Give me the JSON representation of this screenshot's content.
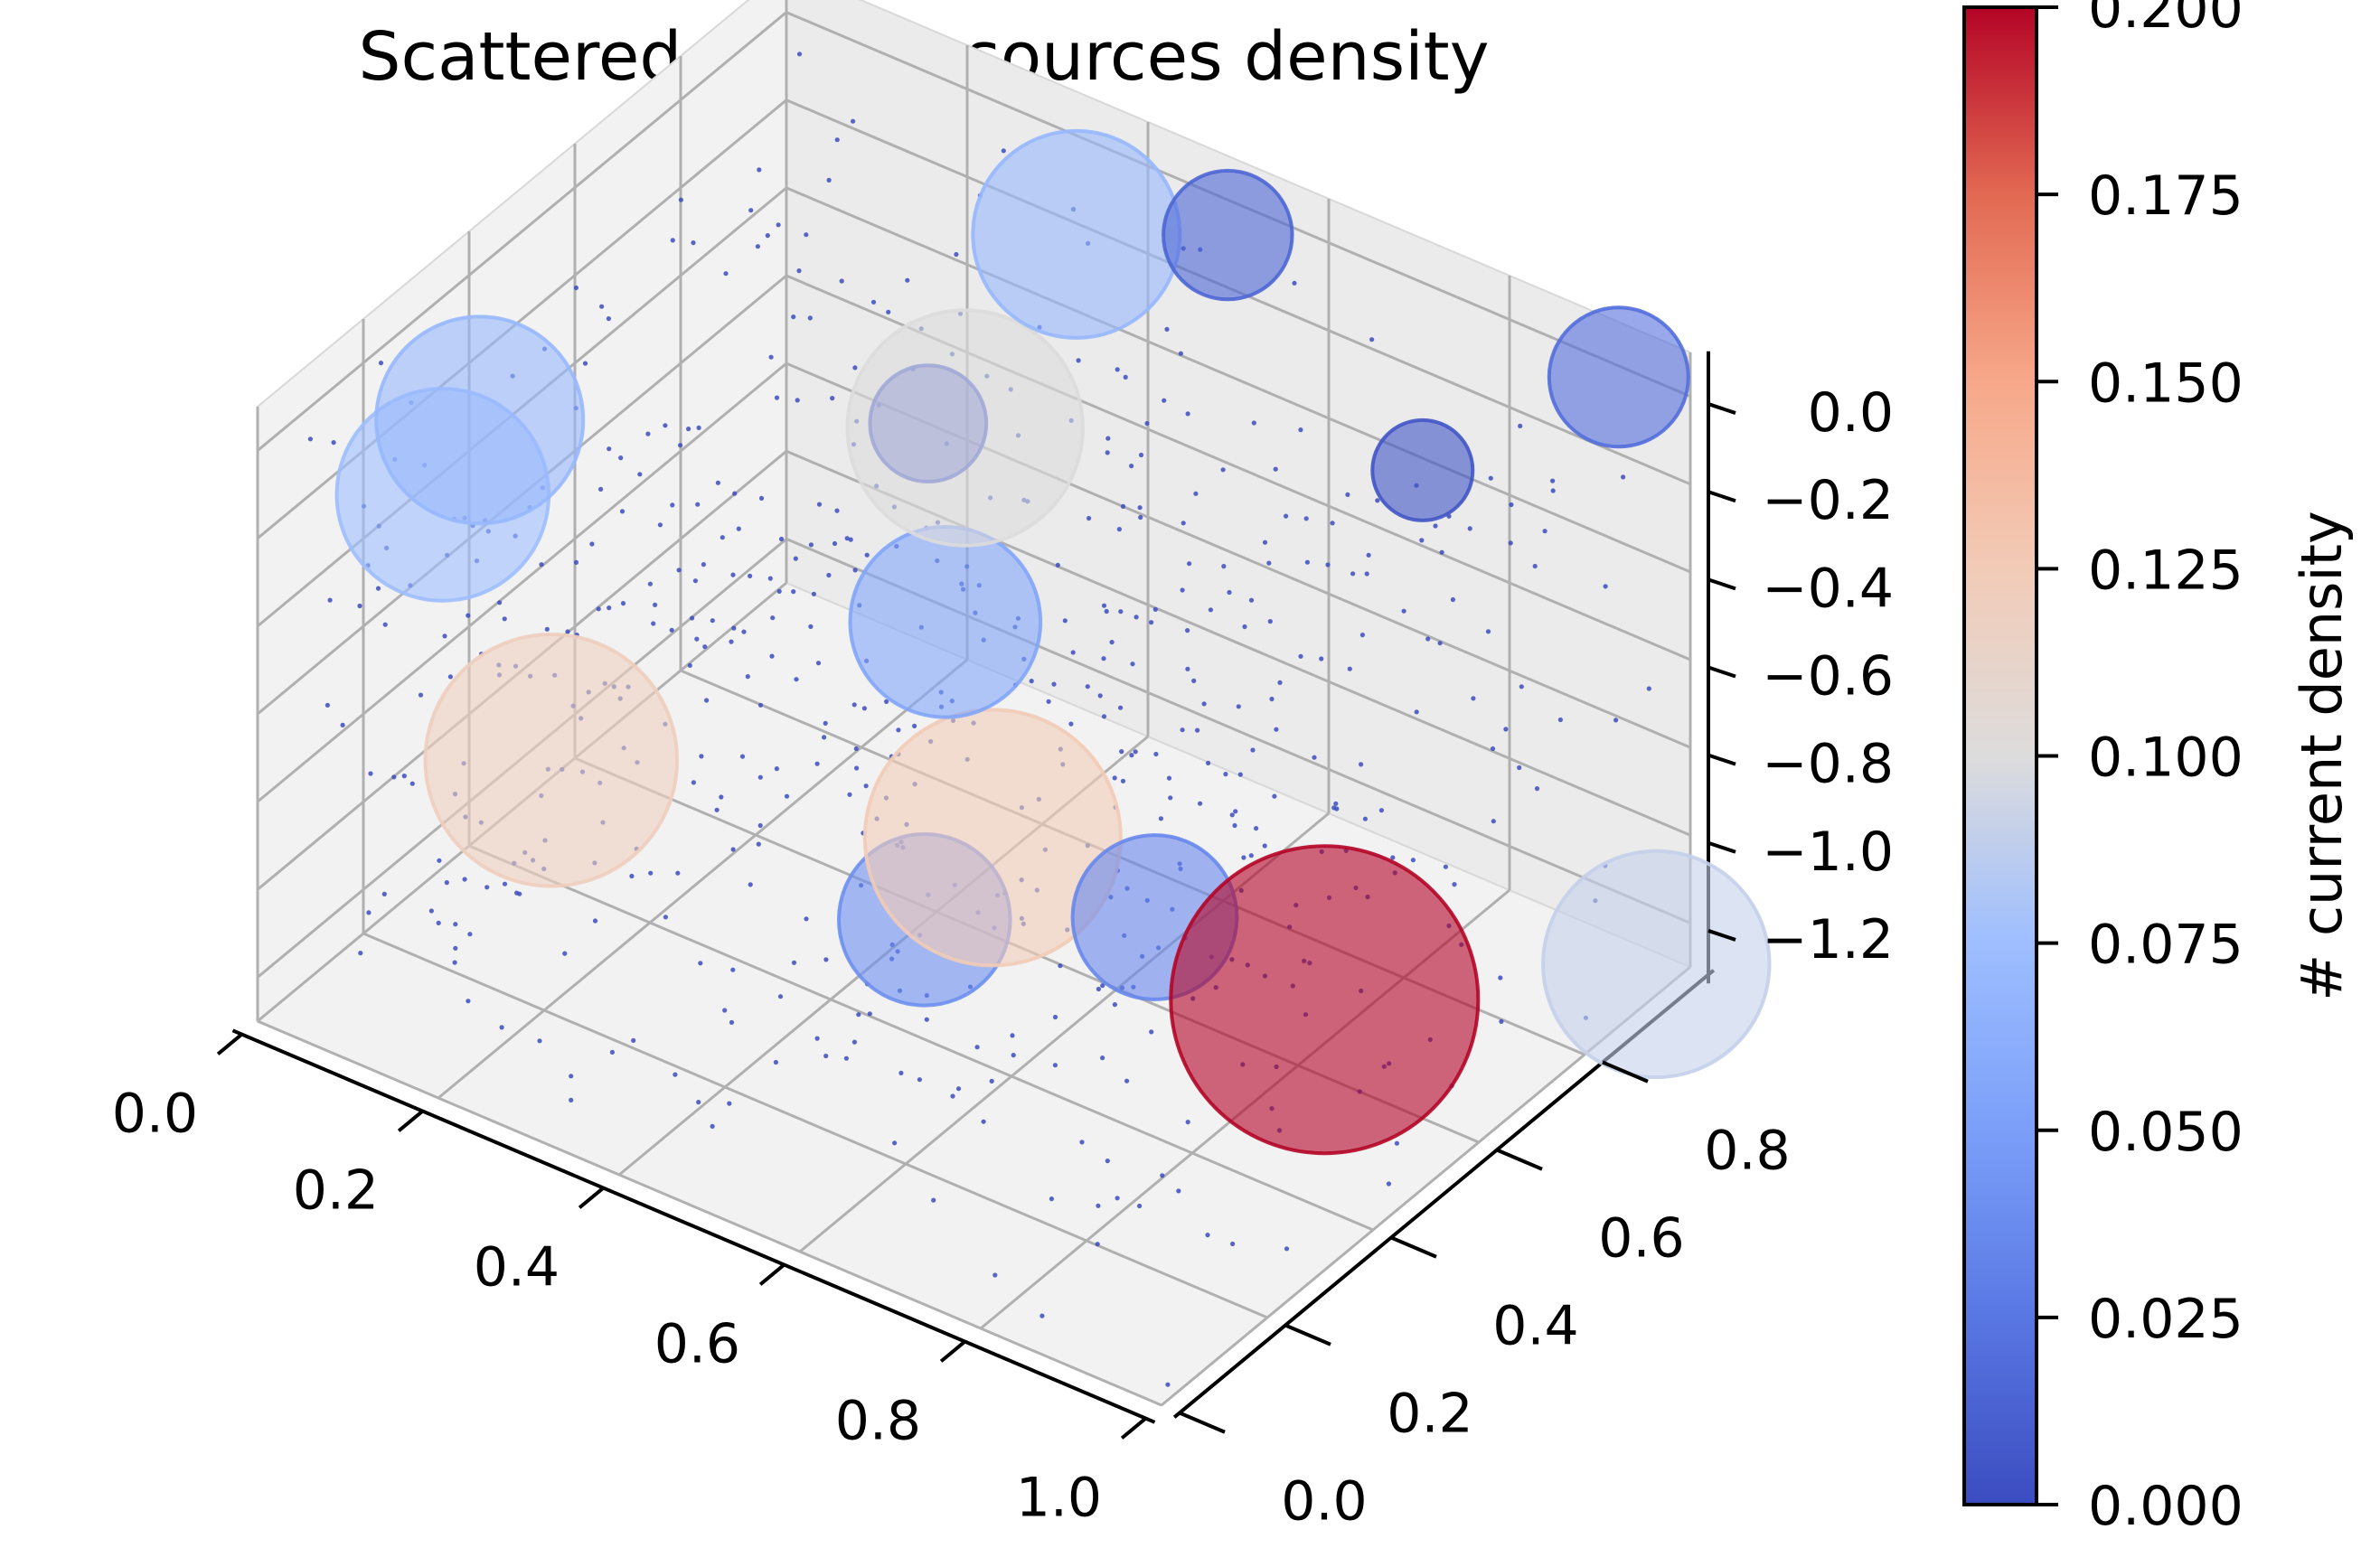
{
  "chart_data": {
    "type": "scatter",
    "title": "Scattered current sources density",
    "projection": "3d",
    "colormap": "coolwarm",
    "grid": true,
    "x_ticks": [
      "0.0",
      "0.2",
      "0.4",
      "0.6",
      "0.8",
      "1.0"
    ],
    "y_ticks": [
      "0.0",
      "0.2",
      "0.4",
      "0.6",
      "0.8"
    ],
    "z_ticks": [
      "0.0",
      "−0.2",
      "−0.4",
      "−0.6",
      "−0.8",
      "−1.0",
      "−1.2"
    ],
    "xlim": [
      0,
      1
    ],
    "ylim": [
      0,
      1
    ],
    "zlim": [
      -1.3,
      0.1
    ],
    "colorbar": {
      "label": "# current density",
      "range": [
        0,
        0.2
      ],
      "ticks": [
        "0.000",
        "0.025",
        "0.050",
        "0.075",
        "0.100",
        "0.125",
        "0.150",
        "0.175",
        "0.200"
      ]
    },
    "point_color": "#3b4cc0",
    "sources": [
      {
        "x": 0.5,
        "y": 0.98,
        "z": -0.05,
        "value": 0.015
      },
      {
        "x": 0.0,
        "y": 0.42,
        "z": -0.35,
        "value": 0.07
      },
      {
        "x": 0.0,
        "y": 0.35,
        "z": -0.45,
        "value": 0.075
      },
      {
        "x": 0.42,
        "y": 0.55,
        "z": -0.12,
        "value": 0.01
      },
      {
        "x": 0.42,
        "y": 0.62,
        "z": -0.2,
        "value": 0.1
      },
      {
        "x": 0.85,
        "y": 0.75,
        "z": -0.05,
        "value": 0.005
      },
      {
        "x": 0.35,
        "y": 0.95,
        "z": -0.15,
        "value": 0.07
      },
      {
        "x": 0.95,
        "y": 0.95,
        "z": 0.05,
        "value": 0.02
      },
      {
        "x": 0.48,
        "y": 0.48,
        "z": -0.45,
        "value": 0.055
      },
      {
        "x": 0.12,
        "y": 0.35,
        "z": -0.95,
        "value": 0.12
      },
      {
        "x": 0.55,
        "y": 0.45,
        "z": -0.85,
        "value": 0.125
      },
      {
        "x": 0.8,
        "y": 0.65,
        "z": -1.2,
        "value": 0.2
      },
      {
        "x": 1.05,
        "y": 0.85,
        "z": -1.1,
        "value": 0.09
      },
      {
        "x": 0.7,
        "y": 0.5,
        "z": -0.95,
        "value": 0.035
      },
      {
        "x": 0.65,
        "y": 0.15,
        "z": -0.65,
        "value": 0.04
      }
    ]
  }
}
